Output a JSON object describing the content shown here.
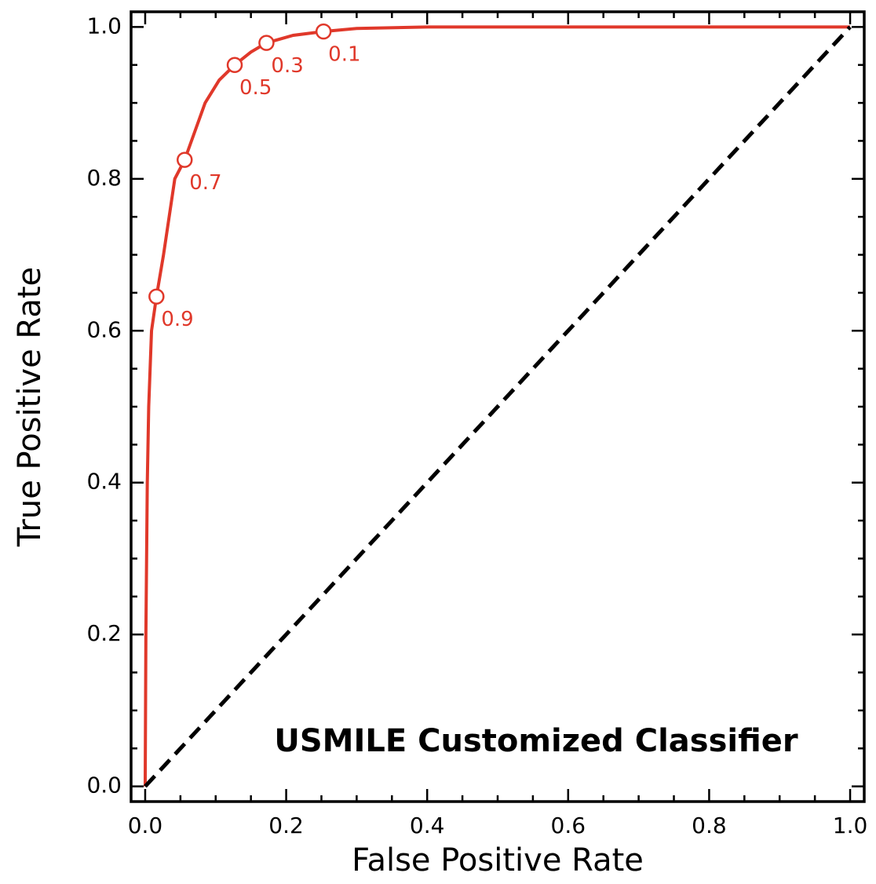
{
  "chart_data": {
    "type": "line",
    "xlabel": "False Positive Rate",
    "ylabel": "True Positive Rate",
    "annotation": "USMILE Customized Classifier",
    "xlim": [
      -0.02,
      1.02
    ],
    "ylim": [
      -0.02,
      1.02
    ],
    "xticks": [
      {
        "value": 0,
        "label": "0.0"
      },
      0.2,
      0.4,
      0.6,
      0.8,
      {
        "value": 1,
        "label": "1.0"
      }
    ],
    "yticks": [
      {
        "value": 0,
        "label": "0.0"
      },
      0.2,
      0.4,
      0.6,
      0.8,
      {
        "value": 1,
        "label": "1.0"
      }
    ],
    "minor_xticks": [
      0.05,
      0.1,
      0.15,
      0.25,
      0.3,
      0.35,
      0.45,
      0.5,
      0.55,
      0.65,
      0.7,
      0.75,
      0.85,
      0.9,
      0.95
    ],
    "minor_yticks": [
      0.05,
      0.1,
      0.15,
      0.25,
      0.3,
      0.35,
      0.45,
      0.5,
      0.55,
      0.65,
      0.7,
      0.75,
      0.85,
      0.9,
      0.95
    ],
    "series": [
      {
        "color": "#e0382a",
        "dash": false,
        "x": [
          0,
          0.0005,
          0.001,
          0.002,
          0.003,
          0.005,
          0.009,
          0.016,
          0.026,
          0.042,
          0.056,
          0.085,
          0.105,
          0.127,
          0.15,
          0.172,
          0.21,
          0.253,
          0.3,
          0.4,
          0.6,
          0.8,
          1
        ],
        "values": [
          0,
          0.1,
          0.2,
          0.3,
          0.4,
          0.5,
          0.6,
          0.645,
          0.7,
          0.8,
          0.825,
          0.9,
          0.93,
          0.95,
          0.967,
          0.979,
          0.989,
          0.994,
          0.998,
          1,
          1,
          1,
          1
        ]
      },
      {
        "color": "#000000",
        "dash": true,
        "x": [
          0,
          1
        ],
        "values": [
          0,
          1
        ]
      }
    ],
    "thresholds": {
      "color": "#e0382a",
      "x": [
        0.016,
        0.056,
        0.127,
        0.172,
        0.253
      ],
      "values": [
        0.645,
        0.825,
        0.95,
        0.979,
        0.994
      ],
      "labels": [
        "0.9",
        "0.7",
        "0.5",
        "0.3",
        "0.1"
      ]
    }
  }
}
